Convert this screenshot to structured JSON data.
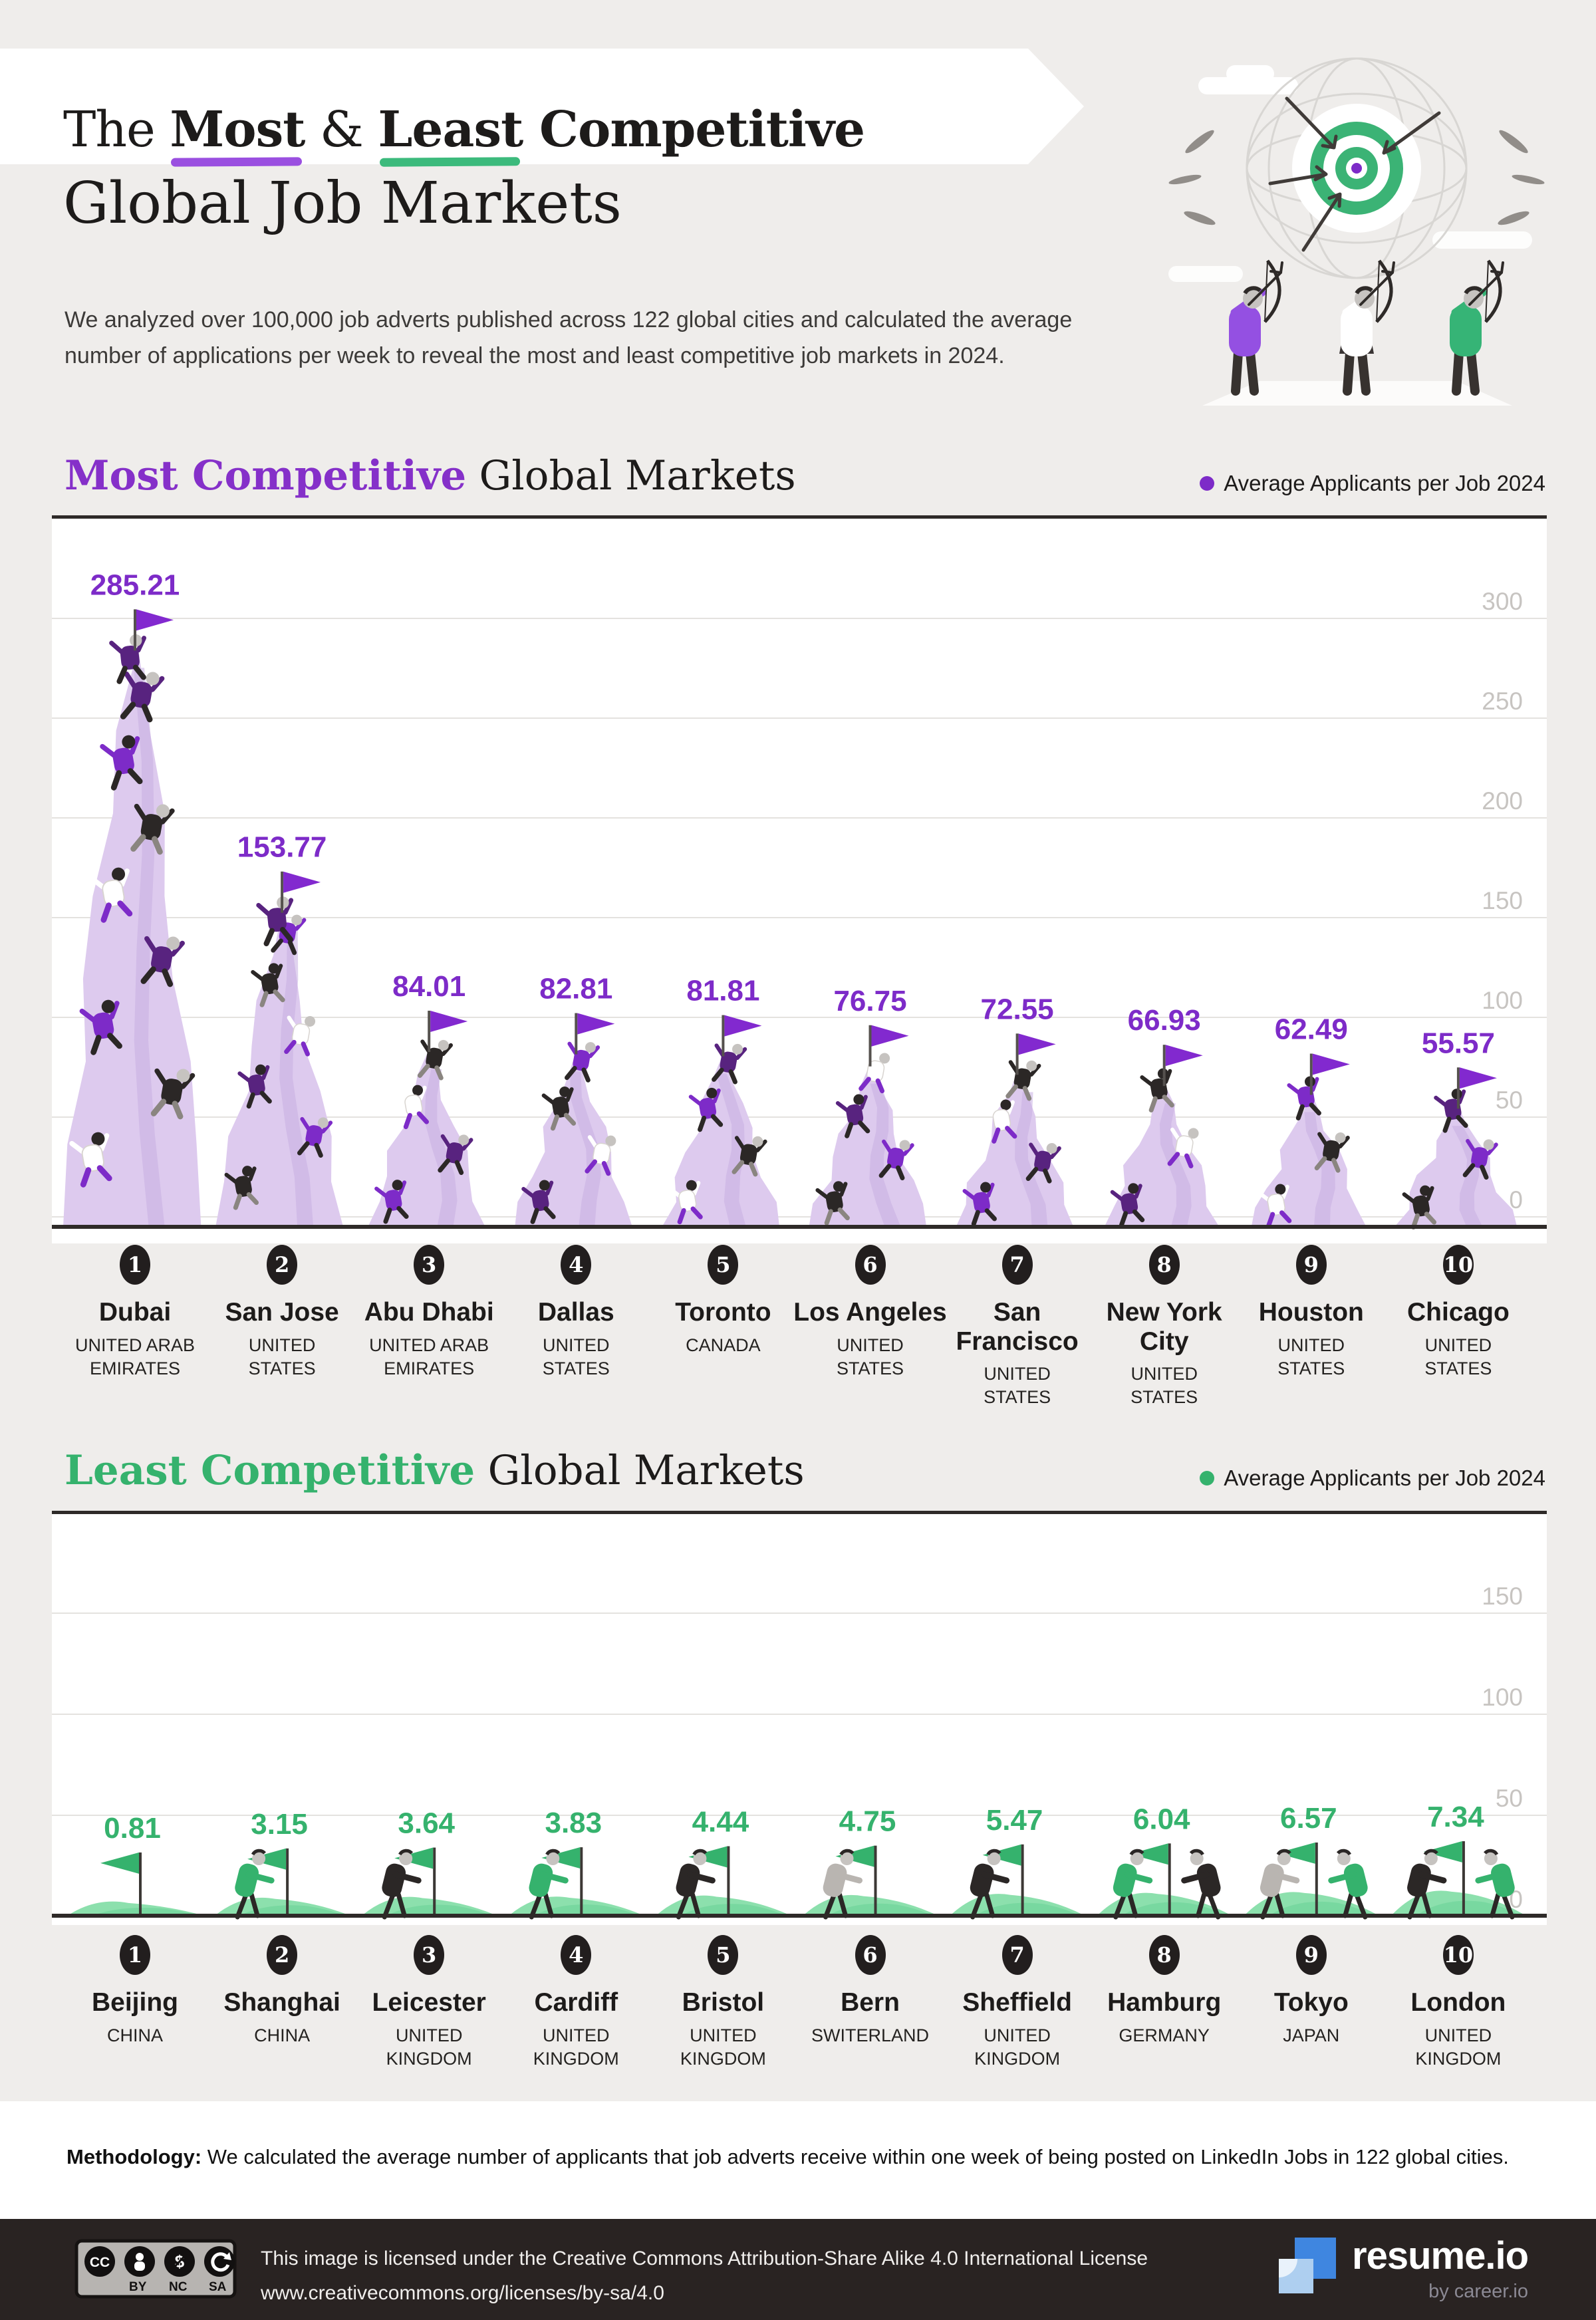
{
  "header": {
    "title": {
      "the": "The ",
      "most": "Most",
      "amp": " & ",
      "least": "Least",
      "competitive": " Competitive",
      "line2": "Global Job Markets"
    },
    "intro": "We analyzed over 100,000 job adverts published across 122 global cities and calculated the average number of applications per week to reveal the most and least competitive job markets in 2024."
  },
  "colors": {
    "purple_accent": "#7d2bc8",
    "purple_underline": "#9a4fe0",
    "purple_flag": "#8229cf",
    "mountain_light": "#ddcaee",
    "mountain_ridge": "#c7aee2",
    "green_accent": "#35b26d",
    "green_underline": "#3cba7c",
    "hill_light": "#8ce0ad",
    "hill_dark": "#5fce90",
    "ink": "#1d1b1a",
    "grid": "#e4e2df",
    "axis_label": "#c7c4c1",
    "badge": "#221e1e",
    "footer_bg": "#292322",
    "logo_blue": "#3f86e0",
    "logo_blue_light": "#aecff0"
  },
  "sections": [
    {
      "title_accent": "Most Competitive",
      "title_rest": " Global Markets",
      "legend": "Average Applicants per Job 2024"
    },
    {
      "title_accent": "Least Competitive",
      "title_rest": " Global Markets",
      "legend": "Average Applicants per Job 2024"
    }
  ],
  "chart_data": [
    {
      "type": "bar",
      "title": "Most Competitive Global Markets",
      "ylabel": "Average Applicants per Job 2024",
      "ylim": [
        0,
        300
      ],
      "yticks": [
        300,
        250,
        200,
        150,
        100,
        50,
        0
      ],
      "grid": true,
      "legend_position": "top-right",
      "categories": [
        "Dubai",
        "San Jose",
        "Abu Dhabi",
        "Dallas",
        "Toronto",
        "Los Angeles",
        "San Francisco",
        "New York City",
        "Houston",
        "Chicago"
      ],
      "countries": [
        "UNITED ARAB EMIRATES",
        "UNITED STATES",
        "UNITED ARAB EMIRATES",
        "UNITED STATES",
        "CANADA",
        "UNITED STATES",
        "UNITED STATES",
        "UNITED STATES",
        "UNITED STATES",
        "UNITED STATES"
      ],
      "ranks": [
        1,
        2,
        3,
        4,
        5,
        6,
        7,
        8,
        9,
        10
      ],
      "values": [
        285.21,
        153.77,
        84.01,
        82.81,
        81.81,
        76.75,
        72.55,
        66.93,
        62.49,
        55.57
      ]
    },
    {
      "type": "bar",
      "title": "Least Competitive Global Markets",
      "ylabel": "Average Applicants per Job 2024",
      "ylim": [
        0,
        150
      ],
      "yticks": [
        150,
        100,
        50,
        0
      ],
      "grid": true,
      "legend_position": "top-right",
      "categories": [
        "Beijing",
        "Shanghai",
        "Leicester",
        "Cardiff",
        "Bristol",
        "Bern",
        "Sheffield",
        "Hamburg",
        "Tokyo",
        "London"
      ],
      "countries": [
        "CHINA",
        "CHINA",
        "UNITED KINGDOM",
        "UNITED KINGDOM",
        "UNITED KINGDOM",
        "SWITERLAND",
        "UNITED KINGDOM",
        "GERMANY",
        "JAPAN",
        "UNITED KINGDOM"
      ],
      "ranks": [
        1,
        2,
        3,
        4,
        5,
        6,
        7,
        8,
        9,
        10
      ],
      "values": [
        0.81,
        3.15,
        3.64,
        3.83,
        4.44,
        4.75,
        5.47,
        6.04,
        6.57,
        7.34
      ]
    }
  ],
  "methodology": {
    "label": "Methodology:",
    "text": " We calculated the average number of applicants that job adverts receive within one week of being posted on LinkedIn Jobs in 122 global cities."
  },
  "footer": {
    "cc_labels": [
      "BY",
      "NC",
      "SA"
    ],
    "license_line1": "This image is licensed under the Creative Commons Attribution-Share Alike 4.0 International License",
    "license_line2": "www.creativecommons.org/licenses/by-sa/4.0",
    "brand": "resume.io",
    "brand_sub": "by career.io"
  }
}
